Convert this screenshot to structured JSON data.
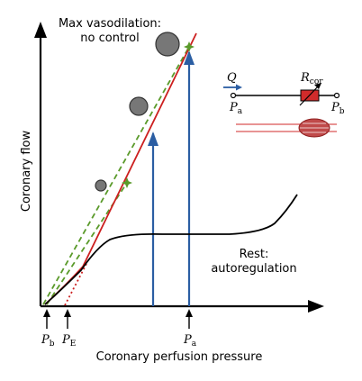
{
  "annotations": {
    "max_line1": "Max vasodilation:",
    "max_line2": "no control",
    "rest_line1": "Rest:",
    "rest_line2": "autoregulation"
  },
  "axes": {
    "y_label": "Coronary flow",
    "x_label": "Coronary perfusion pressure"
  },
  "markers": {
    "pb_main": "P",
    "pb_sub": "b",
    "pe_main": "P",
    "pe_sub": "E",
    "pa_main": "P",
    "pa_sub": "a"
  },
  "inset": {
    "q_label": "Q",
    "r_main": "R",
    "r_sub": "cor",
    "pa_main": "P",
    "pa_sub": "a",
    "pb_main": "P",
    "pb_sub": "b"
  },
  "colors": {
    "red_line": "#cc1f1f",
    "green_dash": "#5a9a2a",
    "black_curve": "#000000",
    "blue_arrow": "#2b5ea3",
    "circle_fill": "#777777",
    "resistor_fill": "#d12b2b",
    "ellipse_fill": "#c04a4a"
  }
}
